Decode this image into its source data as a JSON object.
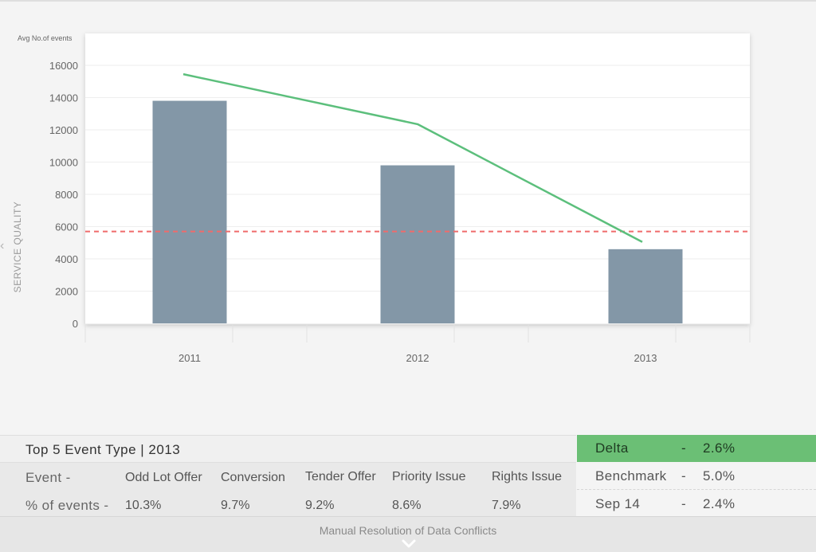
{
  "chart_data": {
    "type": "bar",
    "title": "",
    "ylabel": "Avg No.of events",
    "side_label": "SERVICE QUALITY",
    "categories": [
      "2011",
      "2012",
      "2013"
    ],
    "values": [
      13800,
      9800,
      4600
    ],
    "line_series": {
      "values": [
        15450,
        12350,
        5050
      ],
      "color": "#5cbf7c"
    },
    "reference_line": {
      "value": 5700,
      "style": "dashed",
      "color": "#ef6b6b"
    },
    "bar_color": "#8397a7",
    "yticks": [
      0,
      2000,
      4000,
      6000,
      8000,
      10000,
      12000,
      14000,
      16000
    ],
    "ylim": [
      0,
      17500
    ],
    "grid": true
  },
  "table": {
    "title": "Top 5 Event Type | 2013",
    "row_event_label": "Event    -",
    "row_pct_label": "% of events -",
    "event_types": [
      "Odd Lot Offer",
      "Conversion",
      "Tender Offer",
      "Priority Issue",
      "Rights Issue"
    ],
    "percentages": [
      "10.3%",
      "9.7%",
      "9.2%",
      "8.6%",
      "7.9%"
    ]
  },
  "summary": [
    {
      "name": "Delta",
      "dash": "-",
      "value": "2.6%",
      "active": true
    },
    {
      "name": "Benchmark",
      "dash": "-",
      "value": "5.0%",
      "active": false
    },
    {
      "name": "Sep 14",
      "dash": "-",
      "value": "2.4%",
      "active": false
    }
  ],
  "footer": {
    "label": "Manual Resolution of Data Conflicts",
    "icon": "chevron-down-icon"
  },
  "nav": {
    "icon": "chevron-left-icon"
  },
  "colors": {
    "accent_green": "#6bbf75"
  }
}
